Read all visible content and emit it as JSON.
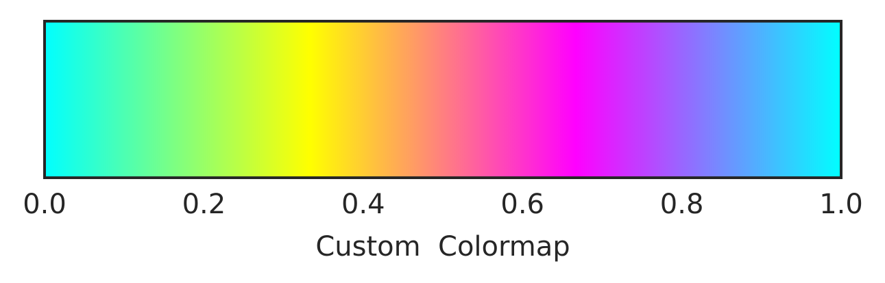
{
  "chart_data": {
    "type": "heatmap",
    "kind": "colorbar",
    "orientation": "horizontal",
    "title": "",
    "xlabel": "Custom  Colormap",
    "ylabel": "",
    "xlim": [
      0.0,
      1.0
    ],
    "grid": false,
    "ticks": [
      0.0,
      0.2,
      0.4,
      0.6,
      0.8,
      1.0
    ],
    "tick_labels": [
      "0.0",
      "0.2",
      "0.4",
      "0.6",
      "0.8",
      "1.0"
    ],
    "colormap_stops": [
      {
        "value": 0.0,
        "color": "#00ffff"
      },
      {
        "value": 0.3333,
        "color": "#ffff00"
      },
      {
        "value": 0.6667,
        "color": "#ff00ff"
      },
      {
        "value": 1.0,
        "color": "#00ffff"
      }
    ]
  },
  "colors": {
    "frame": "#262626",
    "text": "#262626",
    "background": "#ffffff"
  }
}
